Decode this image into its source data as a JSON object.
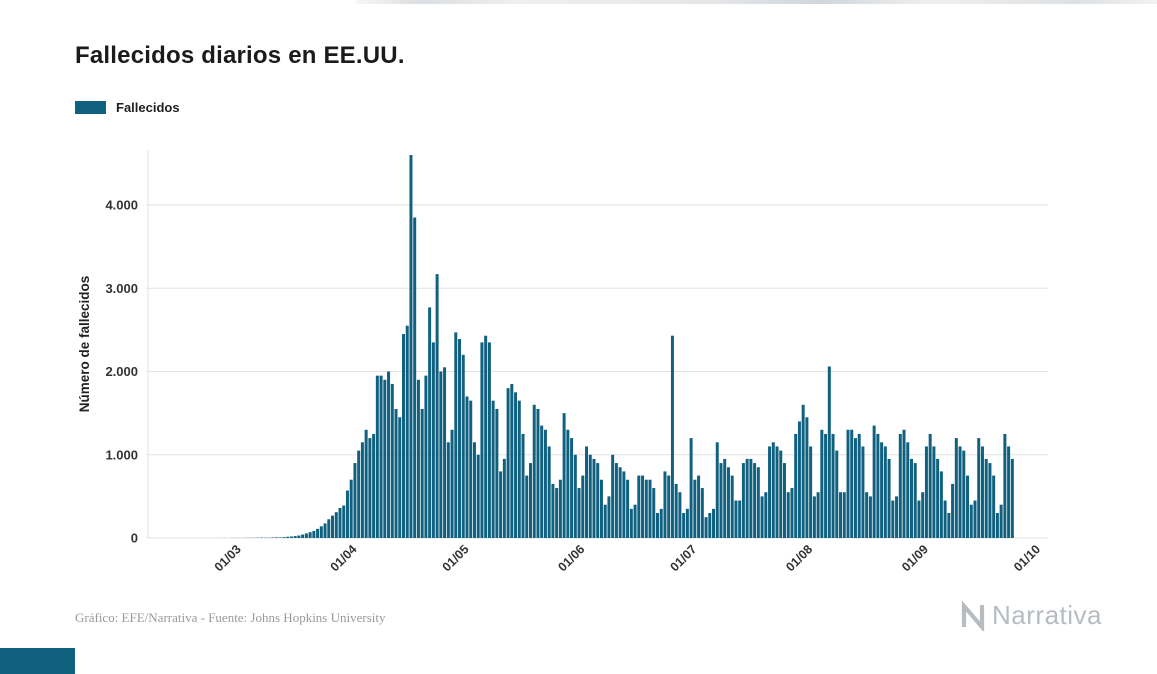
{
  "title": "Fallecidos diarios en EE.UU.",
  "legend": {
    "label": "Fallecidos"
  },
  "footer": {
    "credit": "Gráfico: EFE/Narrativa - Fuente: Johns Hopkins University",
    "brand": "Narrativa"
  },
  "colors": {
    "bar": "#10607f",
    "grid": "#e2e2e2",
    "axis_text": "#333333",
    "title_text": "#1b1b1b",
    "footer_text": "#999999",
    "brand": "#b7bcc1"
  },
  "chart_data": {
    "type": "bar",
    "title": "Fallecidos diarios en EE.UU.",
    "series_name": "Fallecidos",
    "xlabel": "",
    "ylabel": "Número de fallecidos",
    "ylim": [
      0,
      4600
    ],
    "grid": true,
    "legend_position": "top-left",
    "x_granularity": "daily",
    "start_date": "06/02/2020",
    "y_ticks": [
      {
        "value": 0,
        "label": "0"
      },
      {
        "value": 1000,
        "label": "1.000"
      },
      {
        "value": 2000,
        "label": "2.000"
      },
      {
        "value": 3000,
        "label": "3.000"
      },
      {
        "value": 4000,
        "label": "4.000"
      }
    ],
    "x_ticks": [
      {
        "label": "01/03",
        "index": 24
      },
      {
        "label": "01/04",
        "index": 55
      },
      {
        "label": "01/05",
        "index": 85
      },
      {
        "label": "01/06",
        "index": 116
      },
      {
        "label": "01/07",
        "index": 146
      },
      {
        "label": "01/08",
        "index": 177
      },
      {
        "label": "01/09",
        "index": 208
      },
      {
        "label": "01/10",
        "index": 238
      }
    ],
    "domain_days": 239,
    "values": [
      0,
      0,
      0,
      0,
      0,
      0,
      0,
      0,
      0,
      0,
      0,
      0,
      0,
      0,
      0,
      0,
      0,
      0,
      0,
      0,
      1,
      0,
      1,
      1,
      1,
      1,
      2,
      3,
      2,
      4,
      5,
      4,
      4,
      6,
      8,
      7,
      10,
      15,
      18,
      23,
      30,
      42,
      55,
      70,
      85,
      110,
      140,
      175,
      225,
      268,
      310,
      360,
      390,
      570,
      700,
      900,
      1050,
      1150,
      1300,
      1200,
      1250,
      1950,
      1950,
      1900,
      2000,
      1850,
      1550,
      1450,
      2450,
      2550,
      4600,
      3850,
      1900,
      1550,
      1950,
      2770,
      2350,
      3170,
      2000,
      2050,
      1150,
      1300,
      2470,
      2390,
      2200,
      1700,
      1650,
      1150,
      1000,
      2350,
      2430,
      2350,
      1650,
      1550,
      800,
      950,
      1800,
      1850,
      1750,
      1650,
      1250,
      750,
      900,
      1600,
      1550,
      1350,
      1300,
      1100,
      650,
      600,
      700,
      1500,
      1300,
      1200,
      1000,
      600,
      750,
      1100,
      1000,
      950,
      900,
      700,
      400,
      500,
      1000,
      900,
      850,
      800,
      700,
      350,
      400,
      750,
      750,
      700,
      700,
      600,
      300,
      350,
      800,
      750,
      2430,
      650,
      550,
      300,
      350,
      1200,
      700,
      750,
      600,
      250,
      300,
      350,
      1150,
      900,
      950,
      850,
      750,
      450,
      450,
      900,
      950,
      950,
      900,
      850,
      500,
      550,
      1100,
      1150,
      1100,
      1050,
      900,
      550,
      600,
      1250,
      1400,
      1600,
      1450,
      1100,
      500,
      550,
      1300,
      1250,
      2060,
      1250,
      1050,
      550,
      550,
      1300,
      1300,
      1200,
      1250,
      1100,
      550,
      500,
      1350,
      1250,
      1150,
      1100,
      950,
      450,
      500,
      1250,
      1300,
      1150,
      950,
      900,
      450,
      550,
      1100,
      1250,
      1100,
      950,
      800,
      450,
      300,
      650,
      1200,
      1100,
      1050,
      750,
      400,
      450,
      1200,
      1100,
      950,
      900,
      750,
      300,
      400,
      1250,
      1100,
      950
    ]
  }
}
